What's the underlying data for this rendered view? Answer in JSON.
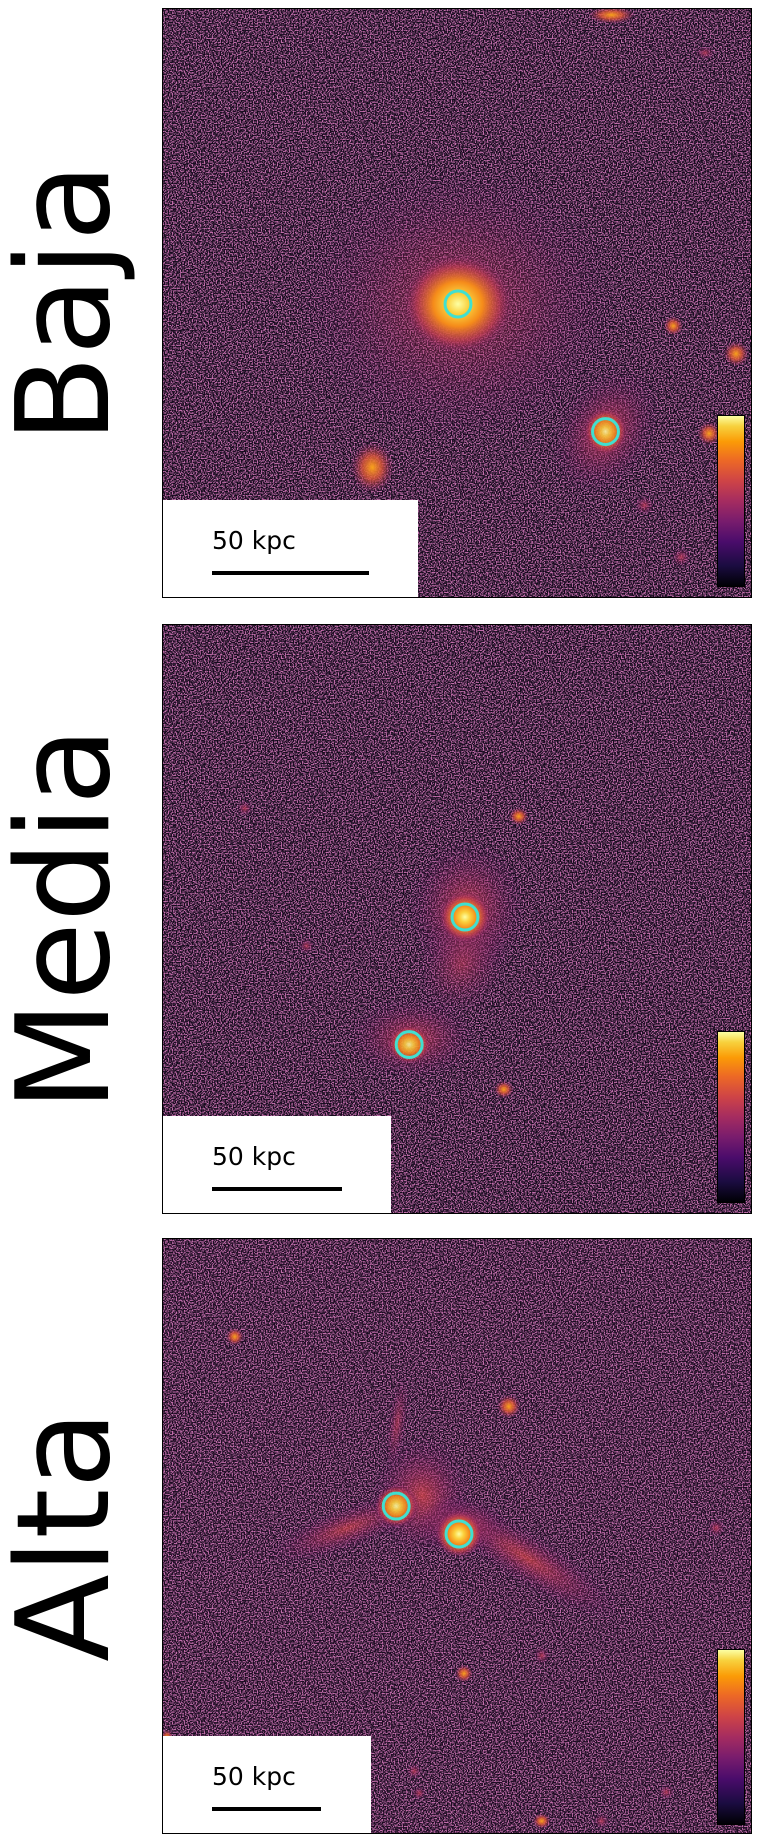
{
  "panels": [
    {
      "name": "Baja",
      "scale_label": "50 kpc"
    },
    {
      "name": "Media",
      "scale_label": "50 kpc"
    },
    {
      "name": "Alta",
      "scale_label": "50 kpc"
    }
  ],
  "colors": {
    "background": "#140a1c",
    "marker": "#40e0d0",
    "colormap": "inferno"
  }
}
